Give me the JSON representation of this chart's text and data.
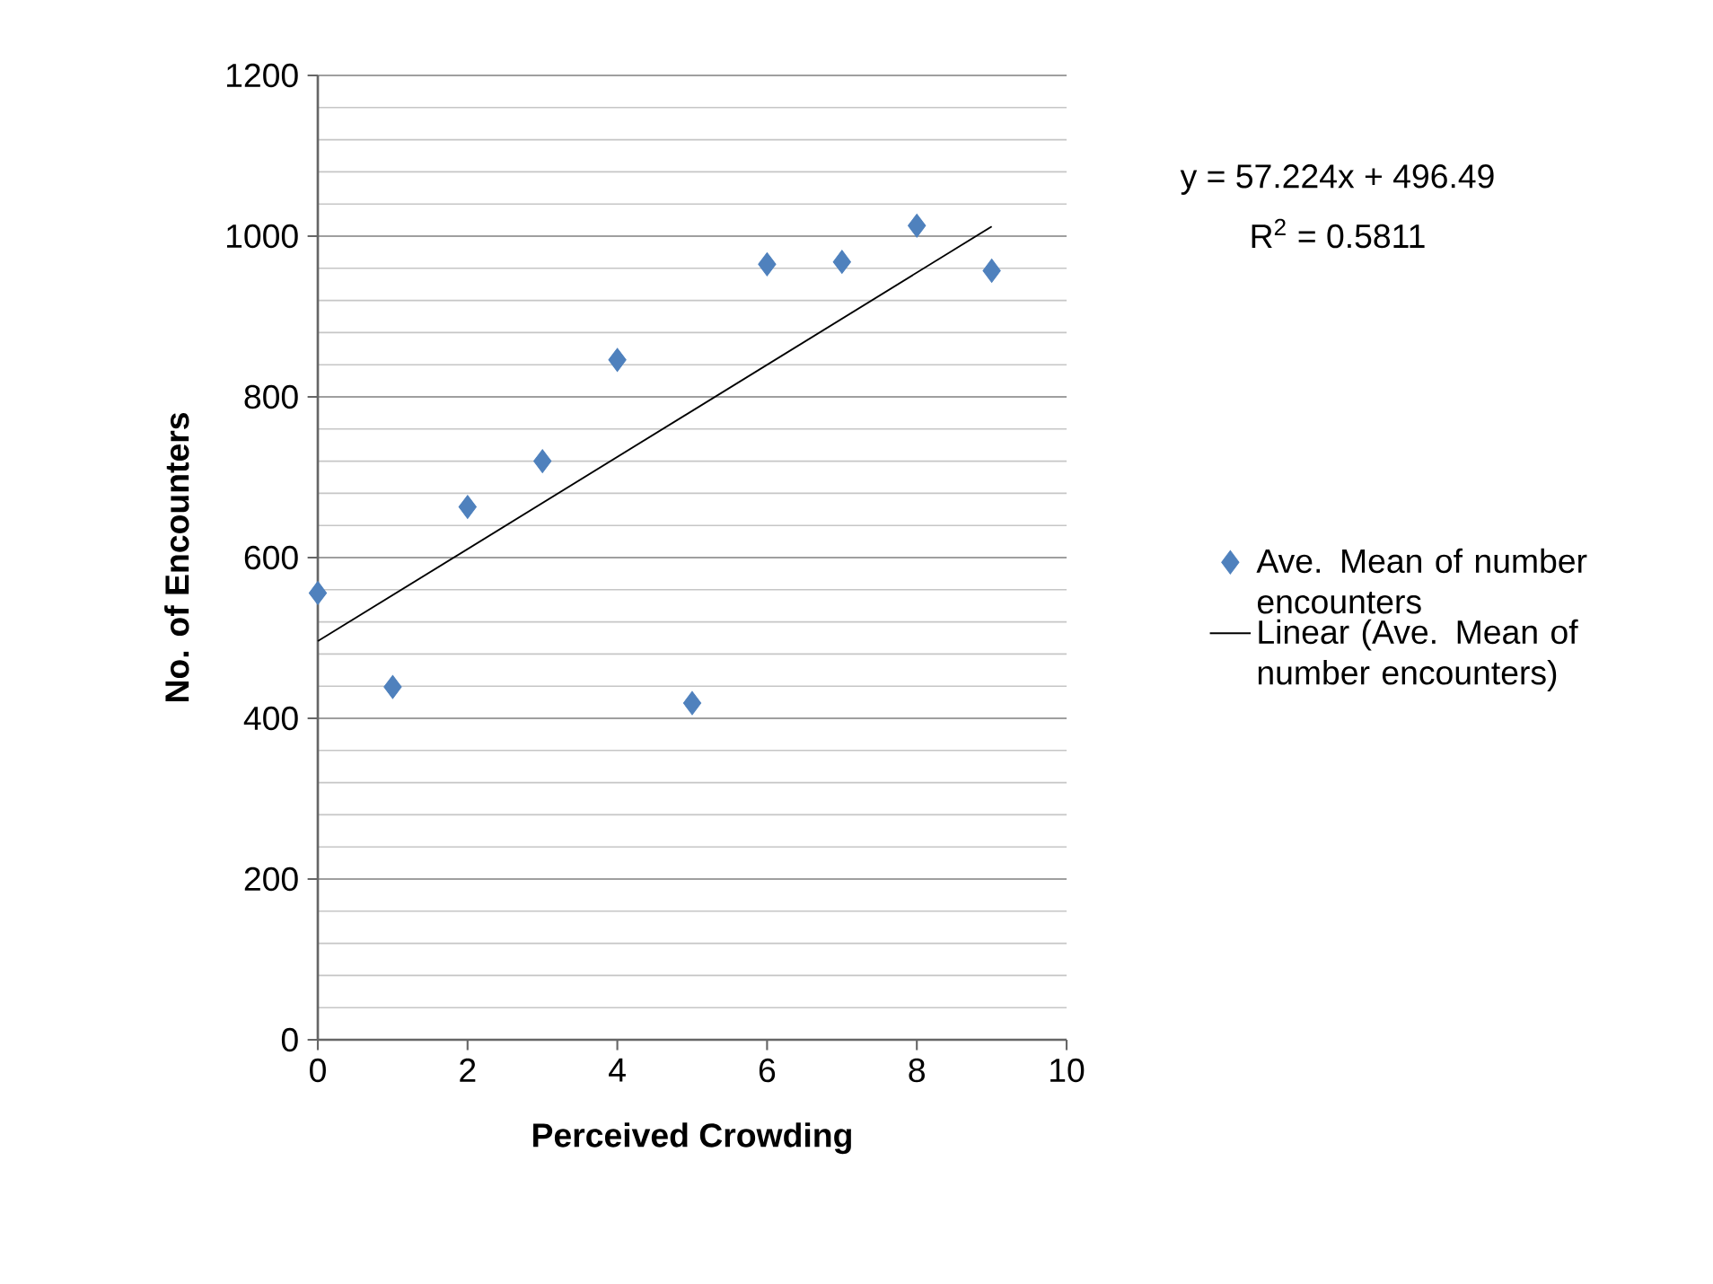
{
  "chart_data": {
    "type": "scatter",
    "xlabel": "Perceived  Crowding",
    "ylabel": "No. of Encounters",
    "xlim": [
      0,
      10
    ],
    "xticks": [
      0,
      2,
      4,
      6,
      8,
      10
    ],
    "ylim": [
      0,
      1200
    ],
    "yticks": [
      0,
      200,
      400,
      600,
      800,
      1000,
      1200
    ],
    "grid": "y",
    "legend": "right",
    "annotations": [
      "y = 57.224x + 496.49",
      "R$^{2}$ = 0.5811"
    ],
    "series": [
      {
        "name": "Ave. Mean of number encounters",
        "marker": "diamond",
        "color": "#4f81bd",
        "x": [
          0,
          1,
          2,
          3,
          4,
          5,
          6,
          7,
          8,
          9
        ],
        "values": [
          556,
          439,
          663,
          720,
          846,
          419,
          965,
          968,
          1013,
          957
        ]
      },
      {
        "name": "Linear (Ave. Mean of number encounters)",
        "type": "line",
        "color": "#000000",
        "x": [
          0,
          9
        ],
        "values": [
          496,
          1012
        ]
      }
    ]
  }
}
